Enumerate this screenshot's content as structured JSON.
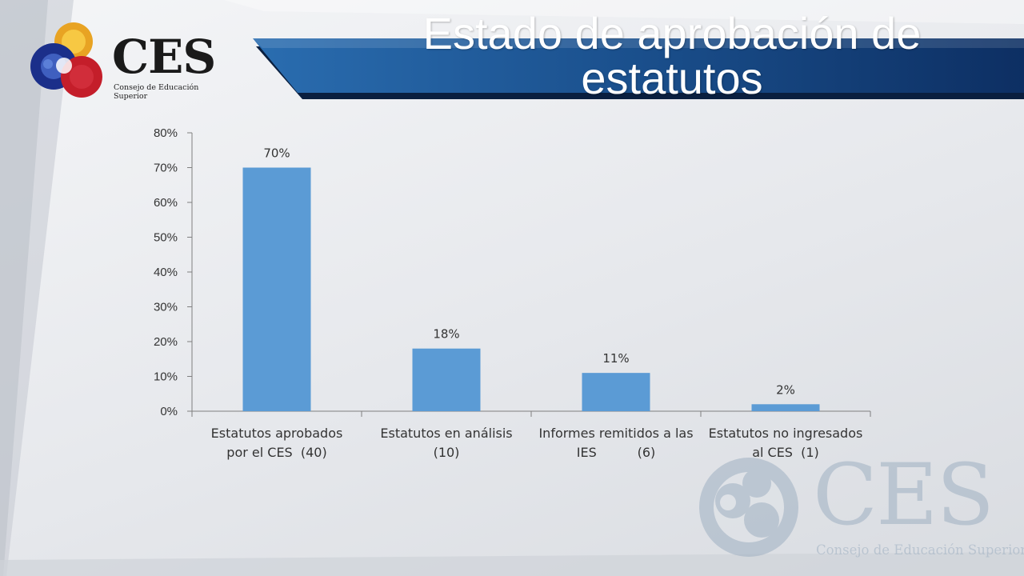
{
  "title": "Estado de aprobación de estatutos",
  "logo": {
    "brand": "CES",
    "subtitle": "Consejo de Educación Superior"
  },
  "watermark": {
    "brand": "CES",
    "subtitle": "Consejo de Educación Superior"
  },
  "colors": {
    "bar": "#5b9bd5",
    "header_dark": "#0b2a5a",
    "header_mid": "#1f5a96"
  },
  "chart_data": {
    "type": "bar",
    "categories": [
      [
        "Estatutos aprobados",
        "por el CES  (40)"
      ],
      [
        "Estatutos en análisis",
        "(10)"
      ],
      [
        "Informes remitidos a las",
        "IES          (6)"
      ],
      [
        "Estatutos no ingresados",
        "al CES  (1)"
      ]
    ],
    "values": [
      70,
      18,
      11,
      2
    ],
    "data_labels": [
      "70%",
      "18%",
      "11%",
      "2%"
    ],
    "ylim": [
      0,
      80
    ],
    "yticks": [
      "0%",
      "10%",
      "20%",
      "30%",
      "40%",
      "50%",
      "60%",
      "70%",
      "80%"
    ],
    "grid": false,
    "xlabel": "",
    "ylabel": ""
  }
}
